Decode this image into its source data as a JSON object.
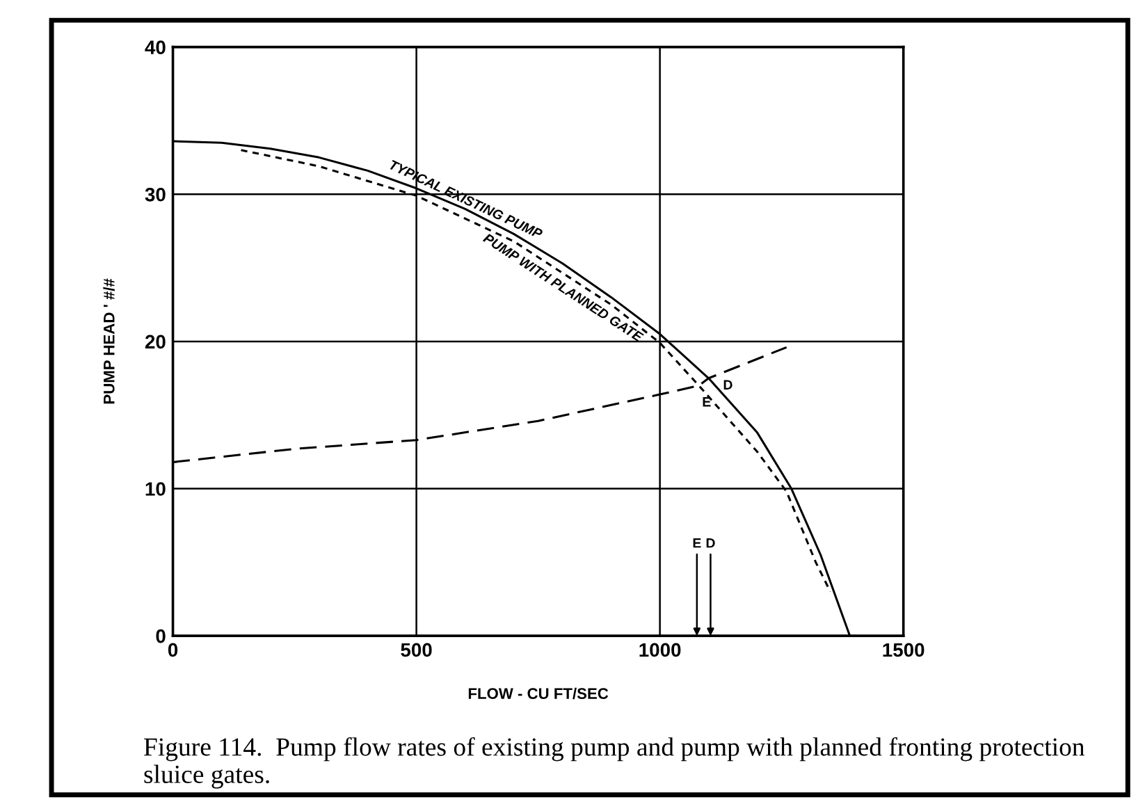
{
  "chart_data": {
    "type": "line",
    "xlabel": "FLOW - CU FT/SEC",
    "ylabel": "PUMP HEAD ' #/#",
    "xlim": [
      0,
      1500
    ],
    "xticks": [
      0,
      500,
      1000,
      1500
    ],
    "ylim": [
      0,
      40
    ],
    "yticks": [
      0,
      10,
      20,
      30,
      40
    ],
    "grid": true,
    "legend": false,
    "marker": "none",
    "series": [
      {
        "name": "TYPICAL EXISTING PUMP",
        "color": "#000000",
        "line_style": "solid",
        "x": [
          0,
          100,
          200,
          300,
          400,
          500,
          600,
          700,
          800,
          900,
          1000,
          1100,
          1200,
          1270,
          1330,
          1390
        ],
        "values": [
          33.6,
          33.5,
          33.1,
          32.5,
          31.6,
          30.4,
          29,
          27.3,
          25.3,
          23,
          20.5,
          17.5,
          13.8,
          10,
          5.5,
          0
        ]
      },
      {
        "name": "PUMP WITH PLANNED GATE",
        "color": "#000000",
        "line_style": "dotted",
        "x": [
          140,
          300,
          500,
          700,
          900,
          1000,
          1080,
          1200,
          1260,
          1320,
          1350
        ],
        "values": [
          33,
          31.9,
          29.9,
          26.8,
          22.5,
          19.9,
          17,
          12.5,
          9.8,
          5,
          3
        ]
      },
      {
        "color": "#000000",
        "line_style": "dashed",
        "x": [
          0,
          250,
          500,
          750,
          1000,
          1080,
          1100,
          1260
        ],
        "values": [
          11.8,
          12.7,
          13.3,
          14.6,
          16.4,
          17,
          17.5,
          19.6
        ]
      }
    ],
    "annotations": [
      {
        "text": "E",
        "x": 1080,
        "y": 17
      },
      {
        "text": "D",
        "x": 1100,
        "y": 17.5
      },
      "E",
      "D",
      "Figure 114.  Pump flow rates of existing pump and pump with planned fronting protection sluice gates."
    ]
  }
}
